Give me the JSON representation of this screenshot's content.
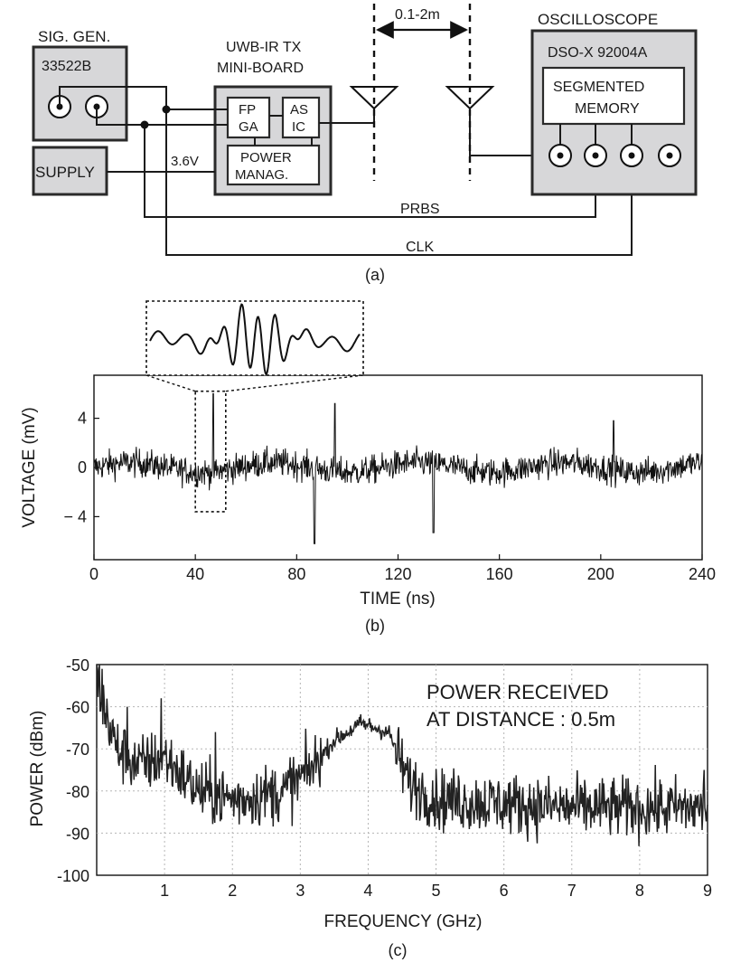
{
  "diagram": {
    "sig_gen_title": "SIG. GEN.",
    "sig_gen_model": "33522B",
    "tx_title_line1": "UWB-IR TX",
    "tx_title_line2": "MINI-BOARD",
    "fpga_line1": "FP",
    "fpga_line2": "GA",
    "asic_line1": "AS",
    "asic_line2": "IC",
    "power_line1": "POWER",
    "power_line2": "MANAG.",
    "supply_label": "SUPPLY",
    "supply_voltage": "3.6V",
    "distance_label": "0.1-2m",
    "scope_title": "OSCILLOSCOPE",
    "scope_model": "DSO-X 92004A",
    "memory_line1": "SEGMENTED",
    "memory_line2": "MEMORY",
    "prbs_label": "PRBS",
    "clk_label": "CLK",
    "caption": "(a)"
  },
  "chart_data": [
    {
      "type": "line",
      "caption": "(b)",
      "xlabel": "TIME (ns)",
      "ylabel": "VOLTAGE (mV)",
      "xlim": [
        0,
        240
      ],
      "ylim": [
        -7.5,
        7.5
      ],
      "xticks": [
        "0",
        "40",
        "80",
        "120",
        "160",
        "200",
        "240"
      ],
      "xtick_values": [
        0,
        40,
        80,
        120,
        160,
        200,
        240
      ],
      "yticks": [
        "4",
        "0",
        "− 4"
      ],
      "ytick_values": [
        4,
        0,
        -4
      ],
      "noise_amplitude_mv": 1.1,
      "spikes": [
        {
          "x": 47,
          "y": 6.0
        },
        {
          "x": 87,
          "y": -6.2
        },
        {
          "x": 95,
          "y": 5.2
        },
        {
          "x": 134,
          "y": -5.3
        },
        {
          "x": 205,
          "y": 3.8
        }
      ],
      "zoom_window": {
        "x": [
          40,
          52
        ],
        "y": [
          -3.6,
          6.2
        ]
      }
    },
    {
      "type": "line",
      "caption": "(c)",
      "xlabel": "FREQUENCY (GHz)",
      "ylabel": "POWER (dBm)",
      "xlim": [
        0,
        9
      ],
      "ylim": [
        -100,
        -50
      ],
      "xticks": [
        "1",
        "2",
        "3",
        "4",
        "5",
        "6",
        "7",
        "8",
        "9"
      ],
      "xtick_values": [
        1,
        2,
        3,
        4,
        5,
        6,
        7,
        8,
        9
      ],
      "yticks": [
        "-50",
        "-60",
        "-70",
        "-80",
        "-90",
        "-100"
      ],
      "ytick_values": [
        -50,
        -60,
        -70,
        -80,
        -90,
        -100
      ],
      "grid": true,
      "annotation_line1": "POWER RECEIVED",
      "annotation_line2": "AT DISTANCE : 0.5m",
      "envelope": [
        {
          "x": 0.0,
          "y": -52
        },
        {
          "x": 0.1,
          "y": -60
        },
        {
          "x": 0.3,
          "y": -70
        },
        {
          "x": 0.6,
          "y": -74
        },
        {
          "x": 1.0,
          "y": -72
        },
        {
          "x": 1.5,
          "y": -80
        },
        {
          "x": 2.0,
          "y": -82
        },
        {
          "x": 2.8,
          "y": -80
        },
        {
          "x": 3.2,
          "y": -74
        },
        {
          "x": 3.5,
          "y": -68
        },
        {
          "x": 3.9,
          "y": -64
        },
        {
          "x": 4.3,
          "y": -66
        },
        {
          "x": 4.6,
          "y": -78
        },
        {
          "x": 5.0,
          "y": -82
        },
        {
          "x": 6.0,
          "y": -83
        },
        {
          "x": 7.0,
          "y": -84
        },
        {
          "x": 8.0,
          "y": -84
        },
        {
          "x": 9.0,
          "y": -84
        }
      ],
      "notable_peaks": [
        {
          "x": 0.08,
          "y": -51
        },
        {
          "x": 0.45,
          "y": -60
        },
        {
          "x": 0.95,
          "y": -58
        },
        {
          "x": 1.75,
          "y": -66
        },
        {
          "x": 2.85,
          "y": -72
        },
        {
          "x": 5.2,
          "y": -78
        },
        {
          "x": 8.95,
          "y": -75
        }
      ]
    }
  ]
}
